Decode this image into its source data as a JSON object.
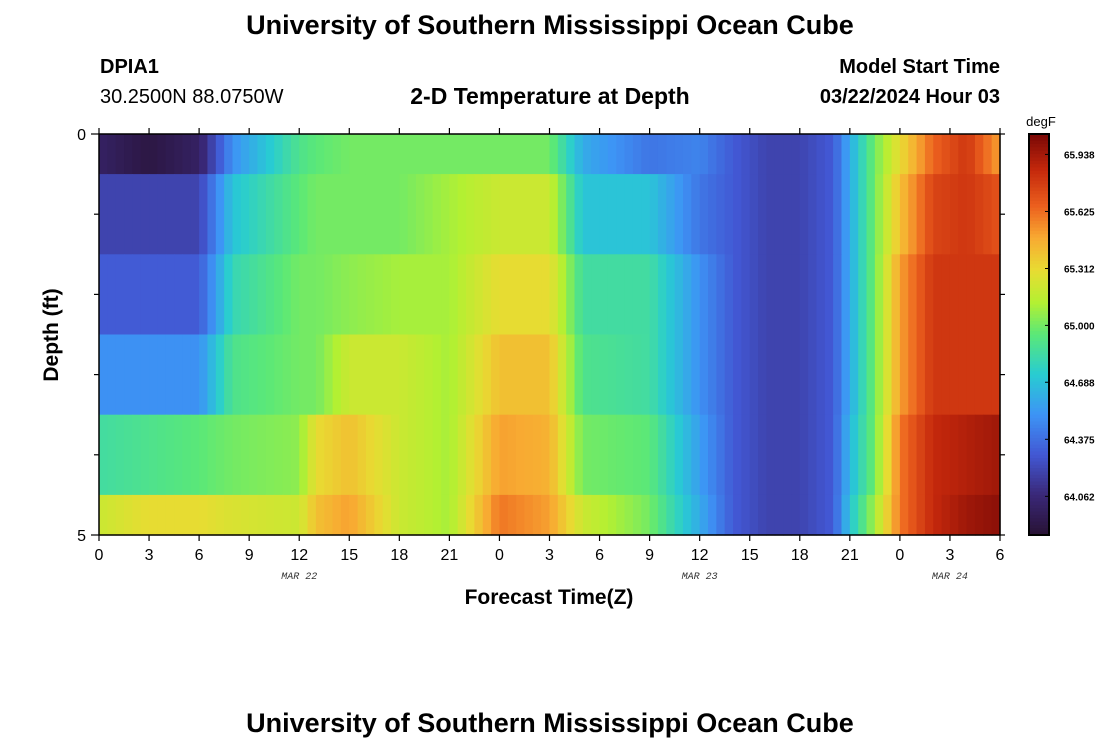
{
  "header": {
    "title": "University of Southern Mississippi Ocean Cube",
    "station_id": "DPIA1",
    "coordinates": "30.2500N  88.0750W",
    "plot_title": "2-D Temperature at Depth",
    "model_start_label": "Model Start Time",
    "model_start_value": "03/22/2024 Hour 03"
  },
  "footer": {
    "title": "University of Southern Mississippi Ocean Cube"
  },
  "chart_data": {
    "type": "heatmap",
    "title": "2-D Temperature at Depth",
    "xlabel": "Forecast Time(Z)",
    "ylabel": "Depth (ft)",
    "x_tick_labels": [
      "0",
      "3",
      "6",
      "9",
      "12",
      "15",
      "18",
      "21",
      "0",
      "3",
      "6",
      "9",
      "12",
      "15",
      "18",
      "21",
      "0",
      "3",
      "6"
    ],
    "date_labels": [
      "MAR 22",
      "MAR 23",
      "MAR 24"
    ],
    "y_tick_labels": [
      "0",
      "5"
    ],
    "y_range": [
      0,
      5
    ],
    "x_range_hours": [
      0,
      54
    ],
    "colorbar": {
      "unit": "degF",
      "tick_labels": [
        "65.938",
        "65.625",
        "65.312",
        "65.000",
        "64.688",
        "64.375",
        "64.062"
      ],
      "range": [
        63.85,
        66.05
      ]
    },
    "keyframes_hours": [
      0,
      3,
      6,
      8,
      12,
      13,
      15,
      18,
      21,
      24,
      27,
      29,
      33,
      36,
      38,
      40,
      42,
      44,
      45,
      46.5,
      48,
      50,
      52,
      54
    ],
    "rows": [
      {
        "depth_band": [
          0,
          0.5
        ],
        "values": [
          64.0,
          63.9,
          64.0,
          64.5,
          64.9,
          64.95,
          65.0,
          65.0,
          65.0,
          65.0,
          65.0,
          64.6,
          64.4,
          64.45,
          64.3,
          64.2,
          64.2,
          64.3,
          64.6,
          65.0,
          65.3,
          65.65,
          65.8,
          65.5
        ]
      },
      {
        "depth_band": [
          0.5,
          1.5
        ],
        "values": [
          64.2,
          64.2,
          64.2,
          64.7,
          64.95,
          65.0,
          65.0,
          65.0,
          65.1,
          65.2,
          65.2,
          64.7,
          64.7,
          64.4,
          64.3,
          64.2,
          64.2,
          64.3,
          64.6,
          65.0,
          65.4,
          65.75,
          65.8,
          65.7
        ]
      },
      {
        "depth_band": [
          1.5,
          2.5
        ],
        "values": [
          64.3,
          64.3,
          64.3,
          64.8,
          65.0,
          65.0,
          65.05,
          65.1,
          65.1,
          65.3,
          65.3,
          64.85,
          64.85,
          64.5,
          64.3,
          64.2,
          64.2,
          64.3,
          64.6,
          65.0,
          65.5,
          65.8,
          65.8,
          65.8
        ]
      },
      {
        "depth_band": [
          2.5,
          3.5
        ],
        "values": [
          64.5,
          64.5,
          64.5,
          64.9,
          65.0,
          65.0,
          65.2,
          65.2,
          65.1,
          65.4,
          65.4,
          64.9,
          64.85,
          64.5,
          64.3,
          64.2,
          64.2,
          64.3,
          64.6,
          65.0,
          65.5,
          65.8,
          65.8,
          65.8
        ]
      },
      {
        "depth_band": [
          3.5,
          4.5
        ],
        "values": [
          64.85,
          64.9,
          64.95,
          65.0,
          65.05,
          65.3,
          65.4,
          65.2,
          65.1,
          65.5,
          65.45,
          65.0,
          64.95,
          64.55,
          64.3,
          64.2,
          64.2,
          64.3,
          64.65,
          65.0,
          65.6,
          65.85,
          65.9,
          65.95
        ]
      },
      {
        "depth_band": [
          4.5,
          5.0
        ],
        "values": [
          65.2,
          65.3,
          65.3,
          65.25,
          65.2,
          65.4,
          65.5,
          65.2,
          65.1,
          65.6,
          65.5,
          65.2,
          65.0,
          64.6,
          64.3,
          64.2,
          64.2,
          64.3,
          64.7,
          65.1,
          65.6,
          65.85,
          65.95,
          66.0
        ]
      }
    ]
  }
}
